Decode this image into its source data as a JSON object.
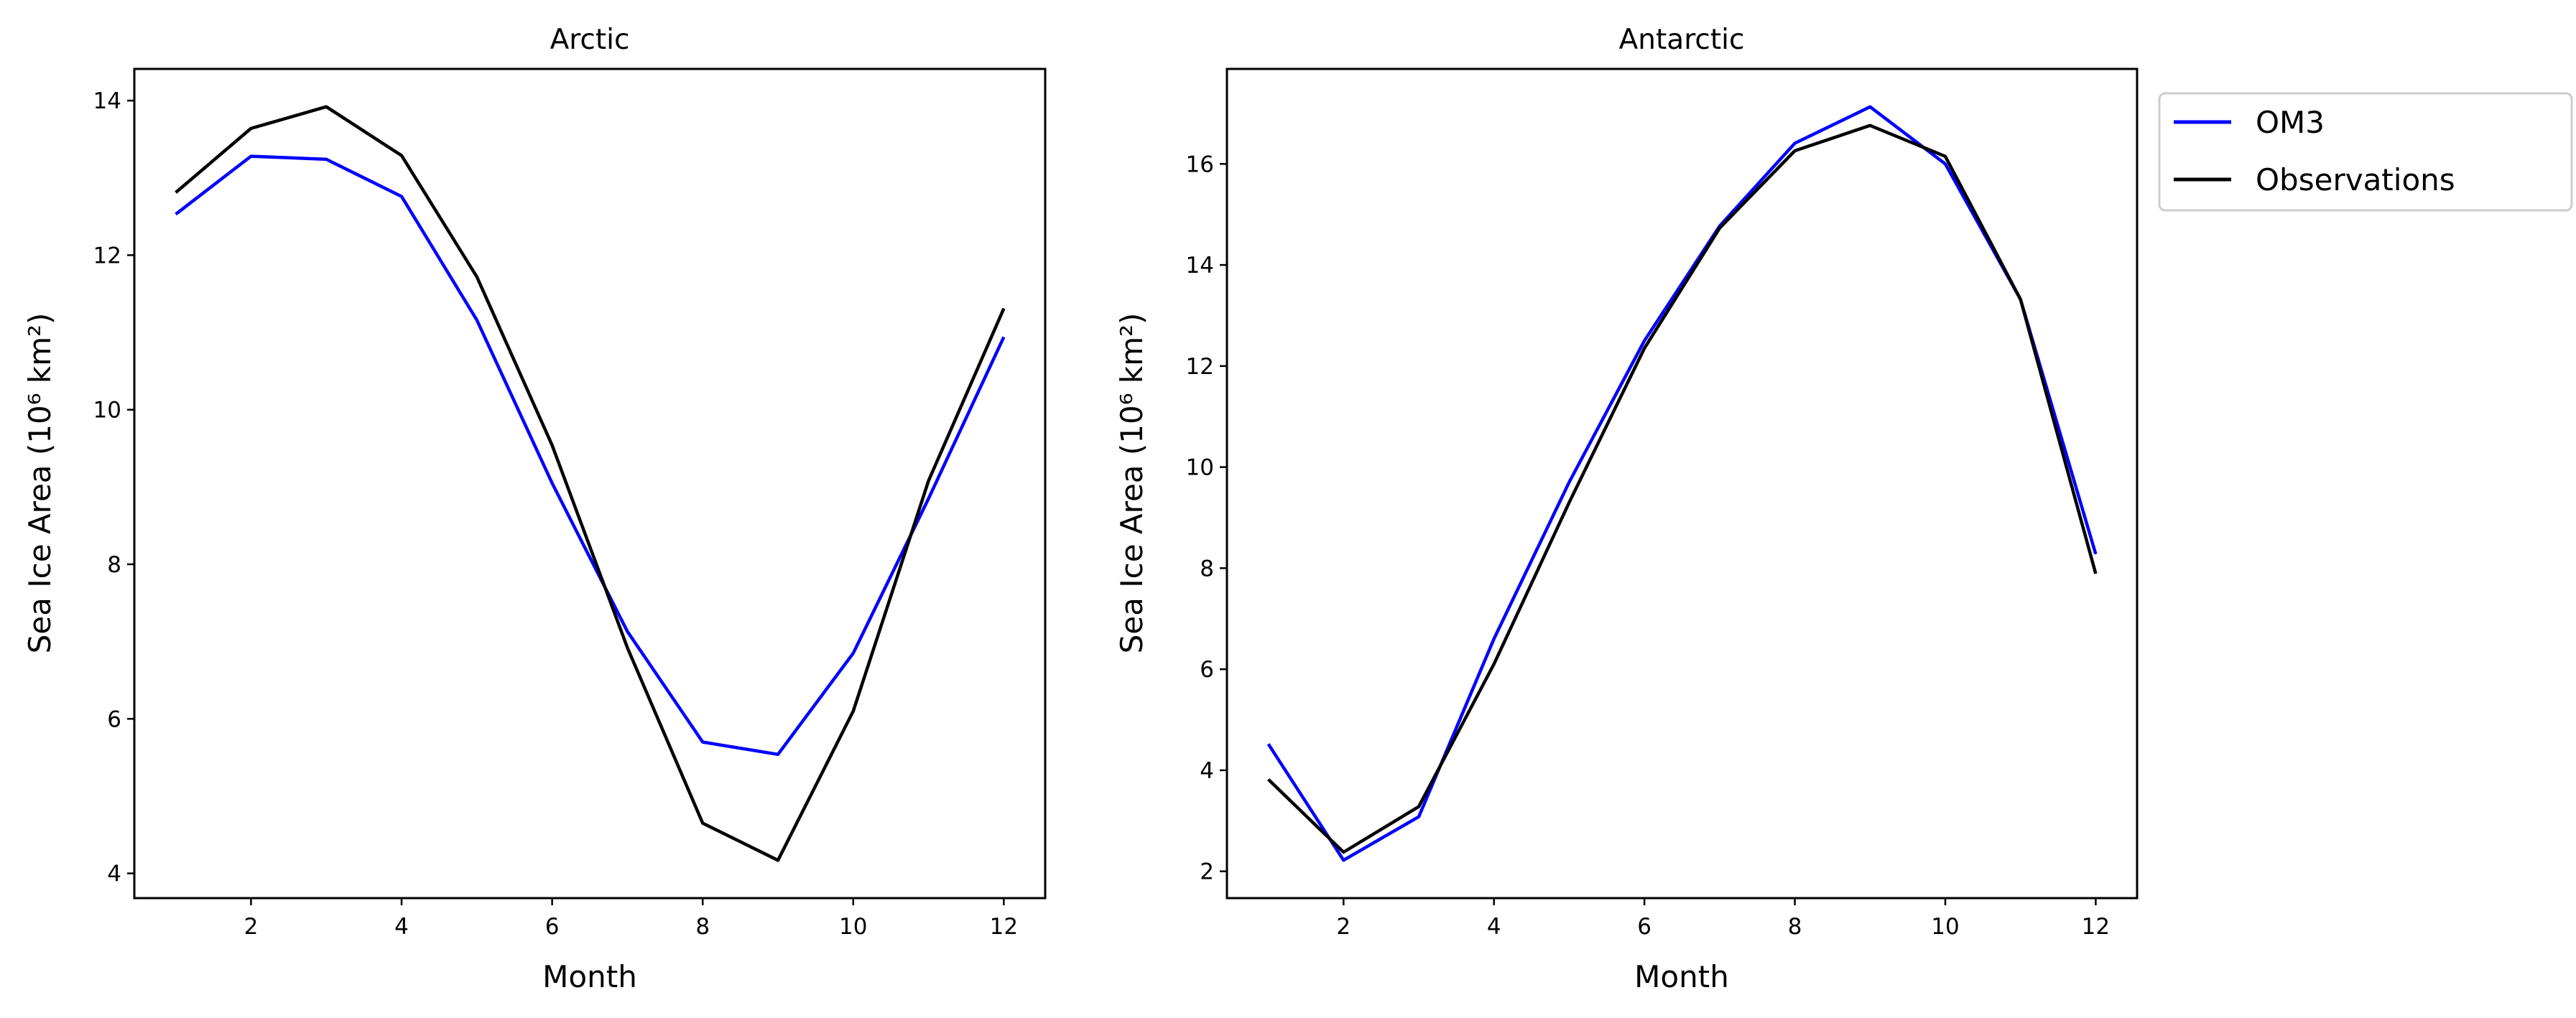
{
  "chart_data": [
    {
      "type": "line",
      "title": "Arctic",
      "xlabel": "Month",
      "ylabel": "Sea Ice Area (10⁶ km²)",
      "x": [
        1,
        2,
        3,
        4,
        5,
        6,
        7,
        8,
        9,
        10,
        11,
        12
      ],
      "xlim": [
        0.45,
        12.55
      ],
      "ylim": [
        3.68,
        14.41
      ],
      "xticks": [
        2,
        4,
        6,
        8,
        10,
        12
      ],
      "yticks": [
        4,
        6,
        8,
        10,
        12,
        14
      ],
      "grid": false,
      "series": [
        {
          "name": "OM3",
          "color": "#0000ff",
          "values": [
            12.53,
            13.28,
            13.24,
            12.76,
            11.16,
            9.05,
            7.13,
            5.7,
            5.54,
            6.85,
            8.85,
            10.94
          ]
        },
        {
          "name": "Observations",
          "color": "#000000",
          "values": [
            12.81,
            13.64,
            13.92,
            13.29,
            11.72,
            9.54,
            6.92,
            4.65,
            4.17,
            6.1,
            9.08,
            11.31
          ]
        }
      ]
    },
    {
      "type": "line",
      "title": "Antarctic",
      "xlabel": "Month",
      "ylabel": "Sea Ice Area (10⁶ km²)",
      "x": [
        1,
        2,
        3,
        4,
        5,
        6,
        7,
        8,
        9,
        10,
        11,
        12
      ],
      "xlim": [
        0.45,
        12.55
      ],
      "ylim": [
        1.47,
        17.88
      ],
      "xticks": [
        2,
        4,
        6,
        8,
        10,
        12
      ],
      "yticks": [
        2,
        4,
        6,
        8,
        10,
        12,
        14,
        16
      ],
      "grid": false,
      "legend": "outside-top-right",
      "series": [
        {
          "name": "OM3",
          "color": "#0000ff",
          "values": [
            4.52,
            2.22,
            3.08,
            6.6,
            9.7,
            12.5,
            14.77,
            16.41,
            17.13,
            16.0,
            13.32,
            8.28
          ]
        },
        {
          "name": "Observations",
          "color": "#000000",
          "values": [
            3.82,
            2.38,
            3.28,
            6.1,
            9.3,
            12.35,
            14.73,
            16.26,
            16.76,
            16.15,
            13.32,
            7.89
          ]
        }
      ]
    }
  ],
  "legend": {
    "entries": [
      "OM3",
      "Observations"
    ]
  }
}
